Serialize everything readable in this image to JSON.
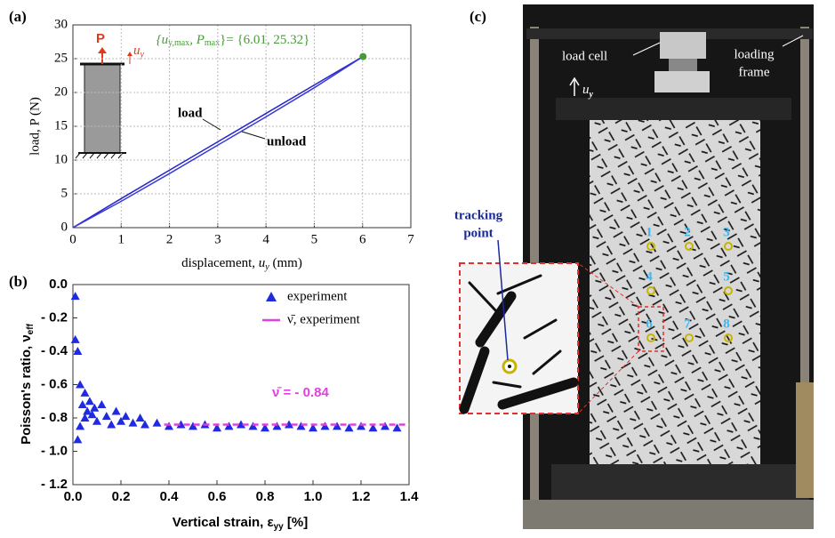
{
  "chart_data": [
    {
      "type": "line",
      "title": "(a)",
      "x_label": [
        "displacement, ",
        "u",
        "y",
        " (mm)"
      ],
      "y_label": "load, P (N)",
      "xlim": [
        0,
        7
      ],
      "ylim": [
        0,
        30
      ],
      "xticks": [
        0,
        1,
        2,
        3,
        4,
        5,
        6,
        7
      ],
      "yticks": [
        0,
        5,
        10,
        15,
        20,
        25,
        30
      ],
      "grid": true,
      "series": [
        {
          "name": "load",
          "color": "#2424c8",
          "x": [
            0,
            1,
            2,
            3,
            4,
            5,
            6.01
          ],
          "values": [
            0,
            4.3,
            8.5,
            12.7,
            16.9,
            21.1,
            25.32
          ]
        },
        {
          "name": "unload",
          "color": "#3a3ad8",
          "x": [
            0,
            1,
            2,
            3,
            4,
            5,
            6.01
          ],
          "values": [
            0,
            3.9,
            8.0,
            12.2,
            16.4,
            20.7,
            25.32
          ]
        }
      ],
      "max_point": {
        "x": 6.01,
        "y": 25.32,
        "color": "#4a9a3a",
        "label": [
          "{u",
          "y,max",
          ", P",
          "max",
          "}= {6.01, 25.32}"
        ]
      },
      "inset": {
        "force": "P",
        "displacement": [
          "u",
          "y"
        ]
      }
    },
    {
      "type": "scatter",
      "title": "(b)",
      "x_label": [
        "Vertical strain, ε",
        "yy",
        " [%]"
      ],
      "y_label": [
        "Poisson's ratio, ν",
        "eff"
      ],
      "xlim": [
        0,
        1.4
      ],
      "ylim": [
        -1.2,
        0
      ],
      "xticks": [
        {
          "value": 0,
          "label": "0.0"
        },
        0.2,
        0.4,
        0.6,
        0.8,
        {
          "value": 1,
          "label": "1.0"
        },
        1.2,
        1.4
      ],
      "yticks": [
        {
          "value": 0,
          "label": "0.0"
        },
        {
          "value": -0.2,
          "label": "- 0.2"
        },
        {
          "value": -0.4,
          "label": "- 0.4"
        },
        {
          "value": -0.6,
          "label": "- 0.6"
        },
        {
          "value": -0.8,
          "label": "- 0.8"
        },
        {
          "value": -1,
          "label": "- 1.0"
        },
        {
          "value": -1.2,
          "label": "- 1.2"
        }
      ],
      "grid": false,
      "legend": "upper right",
      "series": [
        {
          "name": "experiment",
          "color": "#1f2be0",
          "marker": "triangle",
          "x": [
            0.01,
            0.01,
            0.02,
            0.02,
            0.03,
            0.03,
            0.04,
            0.05,
            0.05,
            0.06,
            0.07,
            0.08,
            0.09,
            0.1,
            0.12,
            0.14,
            0.16,
            0.18,
            0.2,
            0.22,
            0.25,
            0.28,
            0.3,
            0.35,
            0.4,
            0.45,
            0.5,
            0.55,
            0.6,
            0.65,
            0.7,
            0.75,
            0.8,
            0.85,
            0.9,
            0.95,
            1.0,
            1.05,
            1.1,
            1.15,
            1.2,
            1.25,
            1.3,
            1.35
          ],
          "values": [
            -0.07,
            -0.33,
            -0.4,
            -0.93,
            -0.6,
            -0.85,
            -0.72,
            -0.65,
            -0.8,
            -0.76,
            -0.7,
            -0.78,
            -0.74,
            -0.82,
            -0.72,
            -0.79,
            -0.84,
            -0.76,
            -0.82,
            -0.79,
            -0.83,
            -0.8,
            -0.84,
            -0.83,
            -0.85,
            -0.84,
            -0.85,
            -0.84,
            -0.86,
            -0.85,
            -0.84,
            -0.85,
            -0.86,
            -0.85,
            -0.84,
            -0.85,
            -0.86,
            -0.85,
            -0.85,
            -0.86,
            -0.85,
            -0.86,
            -0.85,
            -0.86
          ]
        },
        {
          "name": "ν̄, experiment",
          "color": "#e040e0",
          "marker": "dashed-line",
          "x": [
            0.38,
            1.4
          ],
          "values": [
            -0.84,
            -0.84
          ]
        }
      ],
      "annotation": "ν̄ = - 0.84"
    }
  ],
  "photo": {
    "label": "(c)",
    "load_cell": "load cell",
    "loading_frame": [
      "loading",
      "frame"
    ],
    "displacement": [
      "u",
      "y"
    ],
    "tracking_point": [
      "tracking",
      "point"
    ],
    "markers": [
      "1",
      "2",
      "3",
      "4",
      "5",
      "6",
      "7",
      "8"
    ]
  }
}
